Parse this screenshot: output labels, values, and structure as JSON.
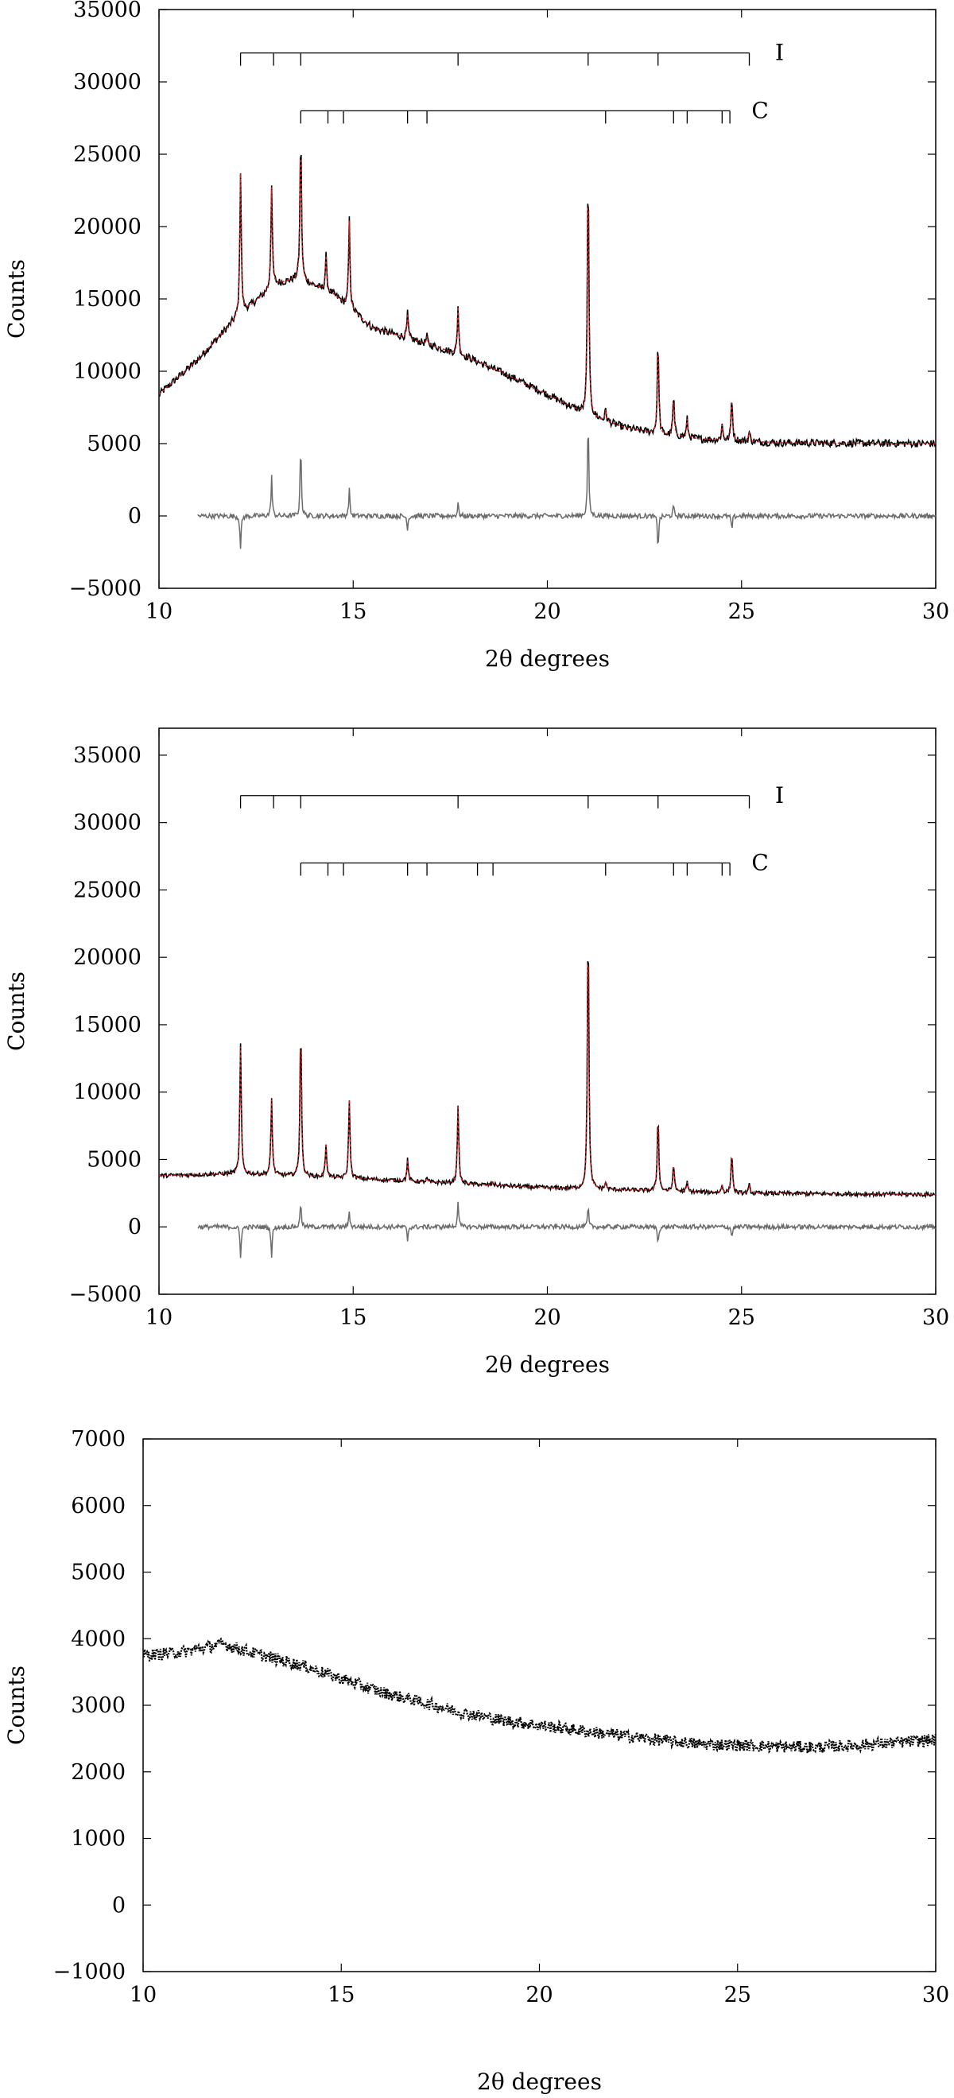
{
  "colors": {
    "observed": "#000000",
    "calculated": "#d11a1a",
    "difference": "#6b6b6b",
    "axes": "#000000"
  },
  "chart_data": [
    {
      "type": "line",
      "xlabel": "2θ degrees",
      "ylabel": "Counts",
      "xlim": [
        10,
        30
      ],
      "ylim": [
        -5000,
        35000
      ],
      "xticks": [
        10,
        15,
        20,
        25,
        30
      ],
      "yticks": [
        -5000,
        0,
        5000,
        10000,
        15000,
        20000,
        25000,
        30000,
        35000
      ],
      "series": [
        {
          "role": "observed",
          "style": "solid black"
        },
        {
          "role": "calculated",
          "style": "dotted red"
        },
        {
          "role": "difference",
          "style": "gray, offset about 0"
        }
      ],
      "background": [
        [
          10,
          8400
        ],
        [
          11,
          10800
        ],
        [
          12,
          13700
        ],
        [
          13,
          16000
        ],
        [
          13.6,
          16400
        ],
        [
          14.5,
          15300
        ],
        [
          15.5,
          13000
        ],
        [
          17,
          11800
        ],
        [
          18,
          10900
        ],
        [
          19,
          9700
        ],
        [
          20,
          8400
        ],
        [
          21,
          7000
        ],
        [
          22,
          6100
        ],
        [
          23,
          5600
        ],
        [
          24,
          5300
        ],
        [
          26,
          5050
        ],
        [
          30,
          5000
        ]
      ],
      "peaks": [
        {
          "x": 12.1,
          "y": 23800
        },
        {
          "x": 12.9,
          "y": 22800
        },
        {
          "x": 13.65,
          "y": 26500
        },
        {
          "x": 14.3,
          "y": 18000
        },
        {
          "x": 14.9,
          "y": 20500
        },
        {
          "x": 16.4,
          "y": 14000
        },
        {
          "x": 16.9,
          "y": 12400
        },
        {
          "x": 17.7,
          "y": 14500
        },
        {
          "x": 21.05,
          "y": 24400
        },
        {
          "x": 21.5,
          "y": 7300
        },
        {
          "x": 22.85,
          "y": 12200
        },
        {
          "x": 23.25,
          "y": 8300
        },
        {
          "x": 23.6,
          "y": 6700
        },
        {
          "x": 24.5,
          "y": 6300
        },
        {
          "x": 24.75,
          "y": 8300
        },
        {
          "x": 25.2,
          "y": 5800
        }
      ],
      "difference_spikes": [
        {
          "x": 12.1,
          "y": -2300
        },
        {
          "x": 12.9,
          "y": 2800
        },
        {
          "x": 13.65,
          "y": 5300
        },
        {
          "x": 14.9,
          "y": 1900
        },
        {
          "x": 16.4,
          "y": -900
        },
        {
          "x": 17.7,
          "y": 900
        },
        {
          "x": 21.05,
          "y": 7000
        },
        {
          "x": 22.85,
          "y": -2300
        },
        {
          "x": 23.25,
          "y": 700
        },
        {
          "x": 24.75,
          "y": -1000
        }
      ],
      "difference_start_x": 11,
      "tick_marks": [
        {
          "label": "I",
          "y": 32000,
          "x_start": 12.1,
          "x_end": 25.2,
          "ticks": [
            12.1,
            12.95,
            13.65,
            17.7,
            21.05,
            22.85,
            25.2
          ]
        },
        {
          "label": "C",
          "y": 28000,
          "x_start": 13.65,
          "x_end": 24.7,
          "ticks": [
            13.65,
            14.35,
            14.75,
            16.4,
            16.9,
            21.5,
            23.25,
            23.6,
            24.5,
            24.7
          ]
        }
      ]
    },
    {
      "type": "line",
      "xlabel": "2θ degrees",
      "ylabel": "Counts",
      "xlim": [
        10,
        30
      ],
      "ylim": [
        -5000,
        37000
      ],
      "xticks": [
        10,
        15,
        20,
        25,
        30
      ],
      "yticks": [
        -5000,
        0,
        5000,
        10000,
        15000,
        20000,
        25000,
        30000,
        35000
      ],
      "series": [
        {
          "role": "observed",
          "style": "solid black"
        },
        {
          "role": "calculated",
          "style": "dotted red"
        },
        {
          "role": "difference",
          "style": "gray, offset about 0"
        }
      ],
      "background": [
        [
          10,
          3800
        ],
        [
          12,
          3950
        ],
        [
          13,
          3850
        ],
        [
          15,
          3600
        ],
        [
          20,
          2900
        ],
        [
          25,
          2500
        ],
        [
          30,
          2400
        ]
      ],
      "peaks": [
        {
          "x": 12.1,
          "y": 13500
        },
        {
          "x": 12.9,
          "y": 9500
        },
        {
          "x": 13.65,
          "y": 15200
        },
        {
          "x": 14.3,
          "y": 6200
        },
        {
          "x": 14.9,
          "y": 9500
        },
        {
          "x": 16.4,
          "y": 5000
        },
        {
          "x": 16.9,
          "y": 3600
        },
        {
          "x": 17.7,
          "y": 9100
        },
        {
          "x": 18.6,
          "y": 3300
        },
        {
          "x": 21.05,
          "y": 23100
        },
        {
          "x": 21.5,
          "y": 3300
        },
        {
          "x": 22.85,
          "y": 8400
        },
        {
          "x": 23.25,
          "y": 4700
        },
        {
          "x": 23.6,
          "y": 3300
        },
        {
          "x": 24.5,
          "y": 3100
        },
        {
          "x": 24.75,
          "y": 5600
        },
        {
          "x": 25.2,
          "y": 3100
        }
      ],
      "difference_spikes": [
        {
          "x": 12.1,
          "y": -2300
        },
        {
          "x": 12.9,
          "y": -2300
        },
        {
          "x": 13.65,
          "y": 2000
        },
        {
          "x": 14.9,
          "y": 1200
        },
        {
          "x": 16.4,
          "y": -1000
        },
        {
          "x": 17.7,
          "y": 2000
        },
        {
          "x": 21.05,
          "y": 1500
        },
        {
          "x": 22.85,
          "y": -1300
        },
        {
          "x": 24.75,
          "y": -800
        }
      ],
      "difference_start_x": 11,
      "tick_marks": [
        {
          "label": "I",
          "y": 32000,
          "x_start": 12.1,
          "x_end": 25.2,
          "ticks": [
            12.1,
            12.95,
            13.65,
            17.7,
            21.05,
            22.85,
            25.2
          ]
        },
        {
          "label": "C",
          "y": 27000,
          "x_start": 13.65,
          "x_end": 24.7,
          "ticks": [
            13.65,
            14.35,
            14.75,
            16.4,
            16.9,
            18.2,
            18.6,
            21.5,
            23.25,
            23.6,
            24.5,
            24.7
          ]
        }
      ]
    },
    {
      "type": "line",
      "xlabel": "2θ degrees",
      "ylabel": "Counts",
      "xlim": [
        10,
        30
      ],
      "ylim": [
        -1000,
        7000
      ],
      "xticks": [
        10,
        15,
        20,
        25,
        30
      ],
      "yticks": [
        -1000,
        0,
        1000,
        2000,
        3000,
        4000,
        5000,
        6000,
        7000
      ],
      "series": [
        {
          "role": "observed",
          "style": "dotted black"
        }
      ],
      "background": [
        [
          10,
          3750
        ],
        [
          11,
          3800
        ],
        [
          12,
          3920
        ],
        [
          13,
          3750
        ],
        [
          14,
          3600
        ],
        [
          15,
          3400
        ],
        [
          16,
          3200
        ],
        [
          17,
          3050
        ],
        [
          18,
          2900
        ],
        [
          19,
          2780
        ],
        [
          20,
          2700
        ],
        [
          21,
          2620
        ],
        [
          22,
          2550
        ],
        [
          23,
          2480
        ],
        [
          24,
          2420
        ],
        [
          25,
          2400
        ],
        [
          26,
          2380
        ],
        [
          27,
          2370
        ],
        [
          28,
          2400
        ],
        [
          29,
          2440
        ],
        [
          30,
          2480
        ]
      ],
      "peaks": [],
      "difference_spikes": [],
      "tick_marks": []
    }
  ]
}
